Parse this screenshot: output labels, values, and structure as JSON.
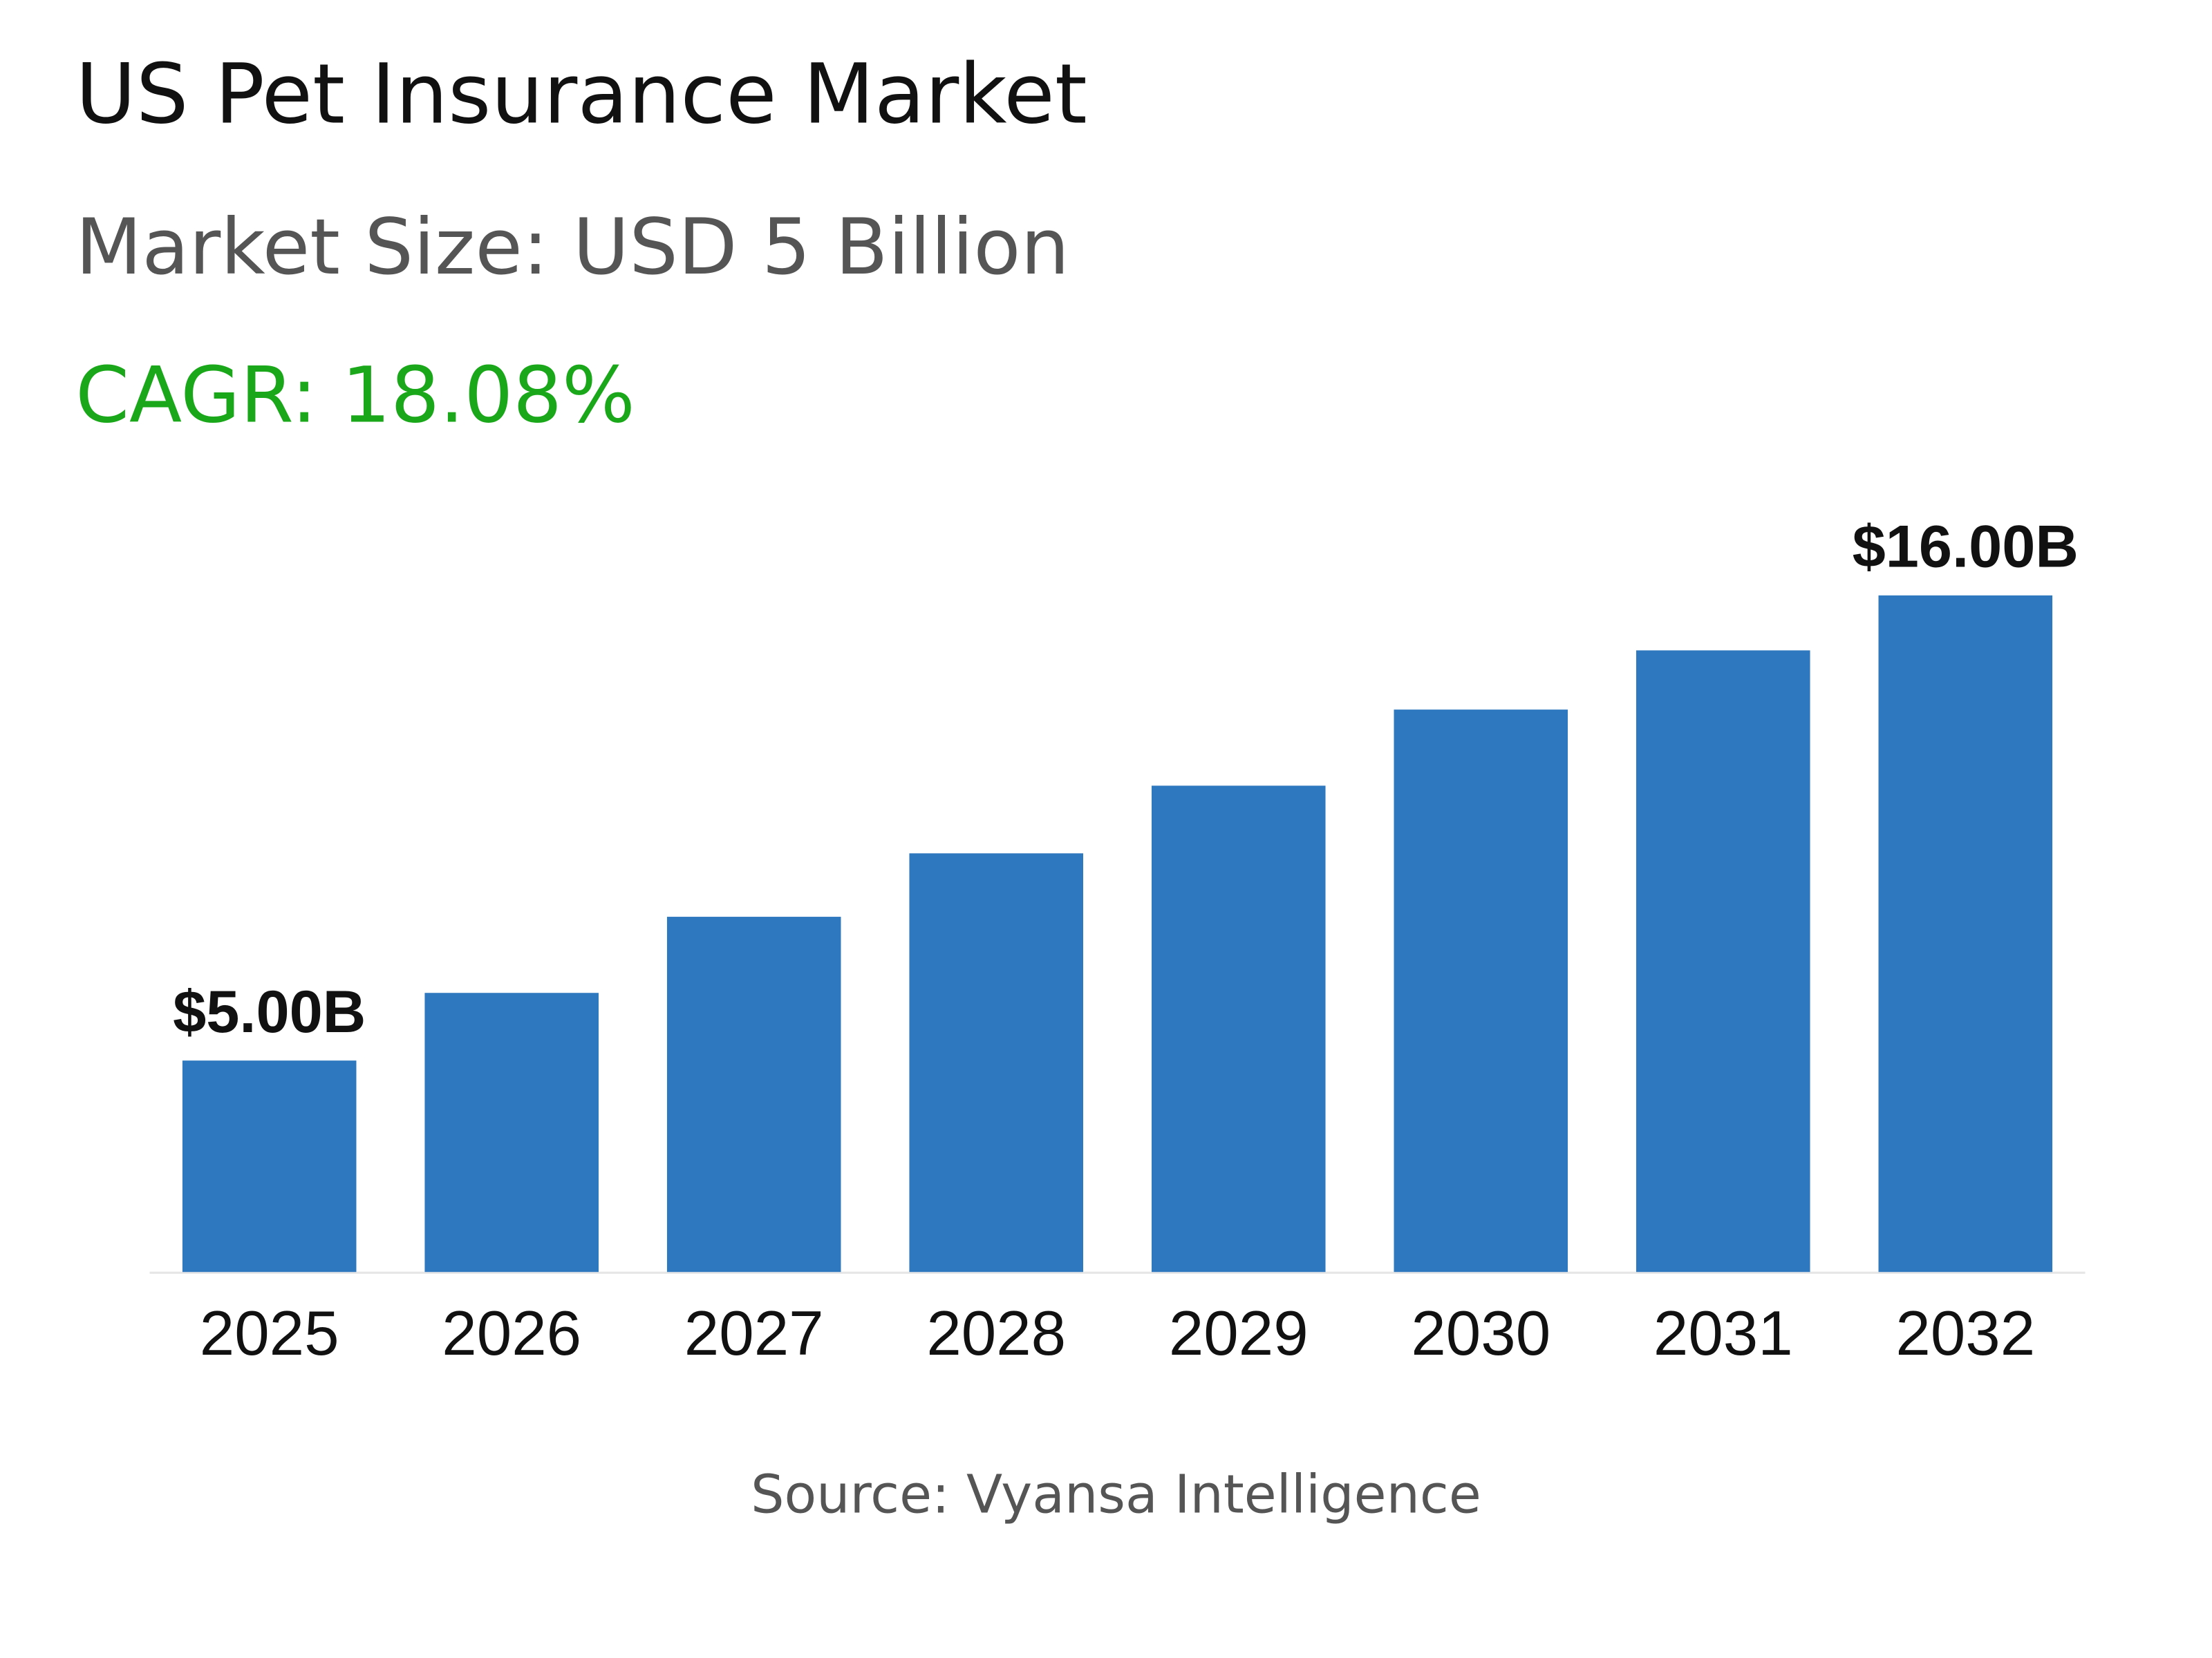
{
  "chart_data": {
    "type": "bar",
    "title": "US Pet Insurance Market",
    "subtitle": "Market Size: USD 5 Billion",
    "annotation": "CAGR: 18.08%",
    "source": "Source: Vyansa Intelligence",
    "categories": [
      "2025",
      "2026",
      "2027",
      "2028",
      "2029",
      "2030",
      "2031",
      "2032"
    ],
    "values": [
      5.0,
      6.6,
      8.4,
      9.9,
      11.5,
      13.3,
      14.7,
      16.0
    ],
    "value_labels": [
      "$5.00B",
      null,
      null,
      null,
      null,
      null,
      null,
      "$16.00B"
    ],
    "color": "#2e78bf"
  }
}
